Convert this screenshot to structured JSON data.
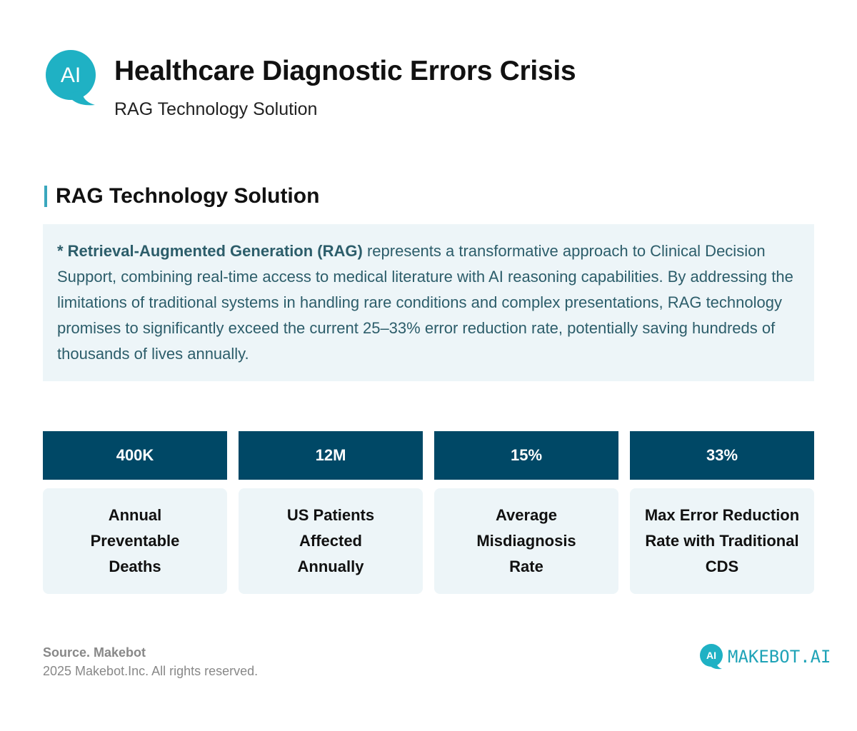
{
  "header": {
    "logo_text": "AI",
    "title": "Healthcare Diagnostic Errors Crisis",
    "subtitle": "RAG Technology Solution"
  },
  "section": {
    "title": "RAG Technology Solution"
  },
  "info": {
    "highlight": "* Retrieval-Augmented Generation (RAG)",
    "body": " represents a transformative approach to Clinical Decision Support, combining real-time access to medical literature with AI reasoning capabilities. By addressing the limitations of traditional systems in handling rare conditions and complex presentations, RAG technology promises to significantly exceed the current 25–33% error reduction rate, potentially saving hundreds of thousands of lives annually."
  },
  "stats": [
    {
      "value": "400K",
      "label": "Annual Preventable Deaths"
    },
    {
      "value": "12M",
      "label": "US Patients Affected Annually"
    },
    {
      "value": "15%",
      "label": "Average Misdiagnosis Rate"
    },
    {
      "value": "33%",
      "label": "Max Error Reduction Rate with Traditional CDS"
    }
  ],
  "footer": {
    "source": "Source. Makebot",
    "copyright": "2025 Makebot.Inc. All rights reserved.",
    "brand": "MAKEBOT.AI",
    "brand_icon_text": "AI"
  },
  "colors": {
    "accent": "#1fa3b7",
    "stat_header": "#004866",
    "box_background": "#edf5f8",
    "info_text": "#2c5d6a"
  },
  "icons": {
    "header_logo": "ai-chat-bubble-icon",
    "brand_logo": "ai-chat-bubble-icon"
  }
}
